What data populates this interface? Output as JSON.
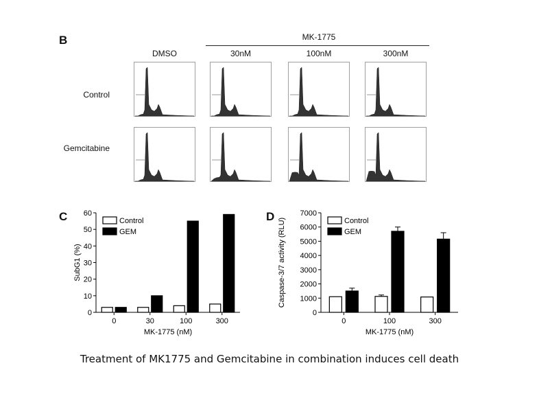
{
  "panel_b": {
    "letter": "B",
    "group_label": "MK-1775",
    "columns": [
      "DMSO",
      "30nM",
      "100nM",
      "300nM"
    ],
    "rows": [
      "Control",
      "Gemcitabine"
    ]
  },
  "caption": "Treatment of MK1775 and Gemcitabine in combination induces cell death",
  "chart_data": [
    {
      "type": "bar",
      "panel": "C",
      "categories": [
        "0",
        "30",
        "100",
        "300"
      ],
      "series": [
        {
          "name": "Control",
          "values": [
            3,
            3,
            4,
            5
          ],
          "color": "#ffffff"
        },
        {
          "name": "GEM",
          "values": [
            3,
            10,
            55,
            59
          ],
          "color": "#000000"
        }
      ],
      "xlabel": "MK-1775 (nM)",
      "ylabel": "SubG1 (%)",
      "ylim": [
        0,
        60
      ],
      "yticks": [
        0,
        10,
        20,
        30,
        40,
        50,
        60
      ],
      "legend": "top-left"
    },
    {
      "type": "bar",
      "panel": "D",
      "categories": [
        "0",
        "100",
        "300"
      ],
      "series": [
        {
          "name": "Control",
          "values": [
            1100,
            1120,
            1080
          ],
          "errors": [
            0,
            100,
            0
          ],
          "color": "#ffffff"
        },
        {
          "name": "GEM",
          "values": [
            1500,
            5700,
            5150
          ],
          "errors": [
            200,
            300,
            450
          ],
          "color": "#000000"
        }
      ],
      "xlabel": "MK-1775 (nM)",
      "ylabel": "Caspase-3/7 activity (RLU)",
      "ylim": [
        0,
        7000
      ],
      "yticks": [
        0,
        1000,
        2000,
        3000,
        4000,
        5000,
        6000,
        7000
      ],
      "legend": "top-left"
    }
  ]
}
